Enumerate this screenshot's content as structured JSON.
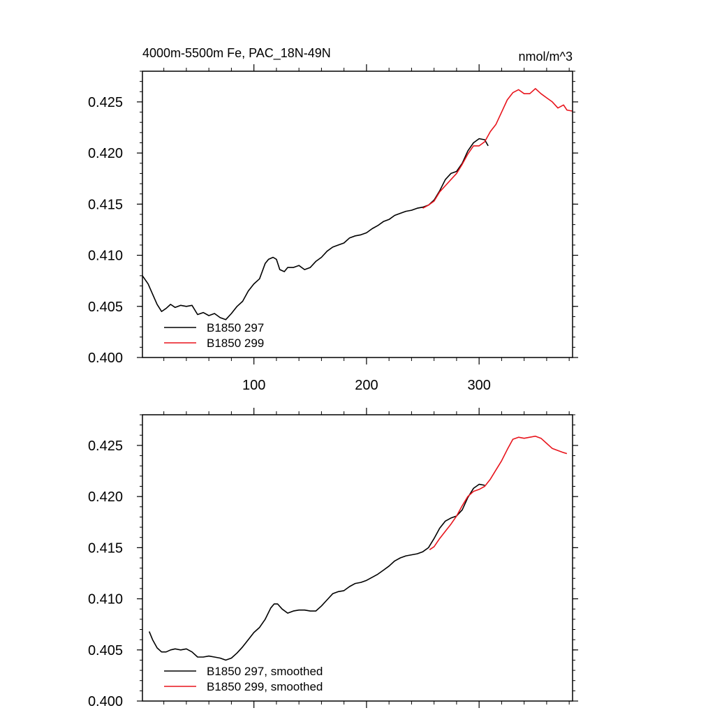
{
  "colors": {
    "series_297": "#000000",
    "series_299": "#e8141c",
    "axis": "#000000"
  },
  "chart_data": [
    {
      "type": "line",
      "title": "4000m-5500m Fe, PAC_18N-49N",
      "units": "nmol/m^3",
      "xlabel": "",
      "ylabel": "",
      "xlim": [
        1,
        383
      ],
      "ylim": [
        0.4,
        0.428
      ],
      "x_ticks": [
        100,
        200,
        300
      ],
      "x_tick_labels": [
        "100",
        "200",
        "300"
      ],
      "y_ticks": [
        0.4,
        0.405,
        0.41,
        0.415,
        0.42,
        0.425
      ],
      "y_tick_labels": [
        "0.400",
        "0.405",
        "0.410",
        "0.415",
        "0.420",
        "0.425"
      ],
      "grid": false,
      "legend_position": "bottom-left",
      "series": [
        {
          "name": "B1850 297",
          "color": "#000000",
          "x": [
            1,
            6,
            10,
            14,
            18,
            22,
            26,
            30,
            35,
            40,
            45,
            50,
            55,
            60,
            65,
            70,
            75,
            80,
            85,
            90,
            95,
            100,
            105,
            110,
            113,
            117,
            120,
            123,
            127,
            130,
            135,
            140,
            145,
            150,
            155,
            160,
            165,
            170,
            175,
            180,
            185,
            190,
            195,
            200,
            205,
            210,
            215,
            220,
            225,
            230,
            235,
            240,
            245,
            250,
            255,
            260,
            265,
            270,
            275,
            280,
            285,
            290,
            295,
            300,
            305,
            308
          ],
          "y": [
            0.408,
            0.4072,
            0.4062,
            0.4052,
            0.4045,
            0.4048,
            0.4052,
            0.4049,
            0.4051,
            0.405,
            0.4051,
            0.4042,
            0.4044,
            0.4041,
            0.4043,
            0.4039,
            0.4037,
            0.4043,
            0.405,
            0.4055,
            0.4065,
            0.4072,
            0.4077,
            0.4092,
            0.4096,
            0.4098,
            0.4096,
            0.4086,
            0.4084,
            0.4088,
            0.4088,
            0.409,
            0.4086,
            0.4088,
            0.4094,
            0.4098,
            0.4104,
            0.4108,
            0.411,
            0.4112,
            0.4117,
            0.4119,
            0.412,
            0.4122,
            0.4126,
            0.4129,
            0.4133,
            0.4135,
            0.4139,
            0.4141,
            0.4143,
            0.4144,
            0.4146,
            0.4147,
            0.4149,
            0.4154,
            0.4163,
            0.4174,
            0.418,
            0.4182,
            0.419,
            0.4202,
            0.421,
            0.4214,
            0.4213,
            0.4207
          ]
        },
        {
          "name": "B1850 299",
          "color": "#e8141c",
          "x": [
            250,
            255,
            260,
            265,
            270,
            275,
            280,
            285,
            290,
            295,
            300,
            305,
            310,
            315,
            320,
            325,
            330,
            335,
            340,
            345,
            350,
            355,
            360,
            365,
            370,
            375,
            378,
            383
          ],
          "y": [
            0.4146,
            0.4149,
            0.4153,
            0.4162,
            0.4168,
            0.4174,
            0.418,
            0.4189,
            0.4199,
            0.4207,
            0.4207,
            0.4211,
            0.4221,
            0.4228,
            0.424,
            0.4252,
            0.4259,
            0.4262,
            0.4258,
            0.4258,
            0.4263,
            0.4258,
            0.4254,
            0.425,
            0.4244,
            0.4247,
            0.4242,
            0.4241
          ]
        }
      ]
    },
    {
      "type": "line",
      "title": "",
      "xlabel": "",
      "ylabel": "",
      "xlim": [
        1,
        383
      ],
      "ylim": [
        0.4,
        0.428
      ],
      "x_ticks": [
        100,
        200,
        300
      ],
      "x_tick_labels": [],
      "y_ticks": [
        0.4,
        0.405,
        0.41,
        0.415,
        0.42,
        0.425
      ],
      "y_tick_labels": [
        "0.400",
        "0.405",
        "0.410",
        "0.415",
        "0.420",
        "0.425"
      ],
      "grid": false,
      "legend_position": "bottom-left",
      "series": [
        {
          "name": "B1850 297, smoothed",
          "color": "#000000",
          "x": [
            7,
            10,
            14,
            18,
            22,
            26,
            30,
            35,
            40,
            45,
            50,
            55,
            60,
            65,
            70,
            75,
            80,
            85,
            90,
            95,
            100,
            105,
            110,
            115,
            118,
            121,
            125,
            130,
            135,
            140,
            145,
            150,
            155,
            160,
            165,
            170,
            175,
            180,
            185,
            190,
            195,
            200,
            205,
            210,
            215,
            220,
            225,
            230,
            235,
            240,
            245,
            250,
            255,
            260,
            265,
            270,
            275,
            280,
            285,
            290,
            295,
            300,
            305
          ],
          "y": [
            0.4068,
            0.406,
            0.4052,
            0.4048,
            0.4048,
            0.405,
            0.4051,
            0.405,
            0.4051,
            0.4048,
            0.4043,
            0.4043,
            0.4044,
            0.4043,
            0.4042,
            0.404,
            0.4042,
            0.4047,
            0.4053,
            0.406,
            0.4067,
            0.4072,
            0.408,
            0.4091,
            0.4095,
            0.4095,
            0.409,
            0.4086,
            0.4088,
            0.4089,
            0.4089,
            0.4088,
            0.4088,
            0.4093,
            0.4099,
            0.4105,
            0.4107,
            0.4108,
            0.4112,
            0.4115,
            0.4116,
            0.4118,
            0.4121,
            0.4124,
            0.4128,
            0.4132,
            0.4137,
            0.414,
            0.4142,
            0.4143,
            0.4144,
            0.4146,
            0.415,
            0.4159,
            0.4169,
            0.4176,
            0.4179,
            0.4181,
            0.4187,
            0.4199,
            0.4208,
            0.4212,
            0.4211
          ]
        },
        {
          "name": "B1850 299, smoothed",
          "color": "#e8141c",
          "x": [
            256,
            260,
            265,
            270,
            275,
            280,
            285,
            290,
            295,
            300,
            305,
            310,
            315,
            320,
            325,
            330,
            335,
            340,
            345,
            350,
            355,
            360,
            365,
            370,
            375,
            378
          ],
          "y": [
            0.4148,
            0.4151,
            0.4159,
            0.4166,
            0.4173,
            0.4181,
            0.4191,
            0.42,
            0.4205,
            0.4207,
            0.421,
            0.4217,
            0.4226,
            0.4235,
            0.4246,
            0.4256,
            0.4258,
            0.4257,
            0.4258,
            0.4259,
            0.4257,
            0.4252,
            0.4247,
            0.4245,
            0.4243,
            0.4242
          ]
        }
      ]
    }
  ]
}
